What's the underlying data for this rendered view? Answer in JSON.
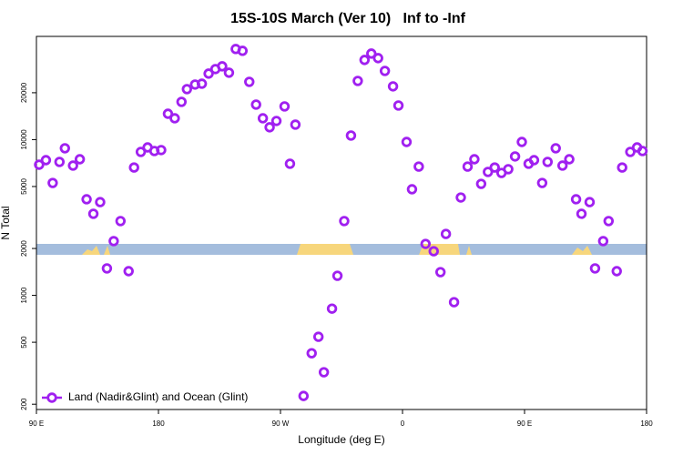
{
  "chart_data": {
    "type": "scatter",
    "title": "15S-10S March (Ver 10)   Inf to -Inf",
    "x_label": "Longitude (deg E)",
    "y_label": "N Total",
    "log_y": true,
    "legend": "bottom-left",
    "xlim": [
      90,
      540
    ],
    "xticks": [
      {
        "value": 90,
        "label": "90 E"
      },
      180,
      {
        "value": 270,
        "label": "90 W"
      },
      {
        "value": 360,
        "label": "0"
      },
      {
        "value": 450,
        "label": "90 E"
      },
      {
        "value": 540,
        "label": "180"
      }
    ],
    "ylim": [
      185,
      46000
    ],
    "yticks": [
      200,
      500,
      1000,
      2000,
      5000,
      10000,
      20000
    ],
    "series": [
      {
        "name": "Land (Nadir&Glint) and Ocean (Glint)",
        "color": "#a020f0",
        "x": [
          92,
          97,
          102,
          107,
          111,
          117,
          122,
          127,
          132,
          137,
          142,
          147,
          152,
          158,
          162,
          167,
          172,
          177,
          182,
          187,
          192,
          197,
          201,
          207,
          212,
          217,
          222,
          227,
          232,
          237,
          242,
          247,
          252,
          257,
          262,
          267,
          273,
          277,
          281,
          287,
          293,
          298,
          302,
          308,
          312,
          317,
          322,
          327,
          332,
          337,
          342,
          347,
          353,
          357,
          363,
          367,
          372,
          377,
          383,
          388,
          392,
          398,
          403,
          408,
          413,
          418,
          423,
          428,
          433,
          438,
          443,
          448,
          453,
          457,
          463,
          467,
          473,
          478,
          483,
          488,
          492,
          498,
          502,
          508,
          512,
          518,
          522,
          528,
          533,
          537
        ],
        "values": [
          6900,
          7380,
          5270,
          7190,
          8800,
          6810,
          7480,
          4140,
          3340,
          3970,
          1490,
          2230,
          3000,
          1430,
          6620,
          8340,
          8910,
          8450,
          8570,
          14660,
          13710,
          17480,
          21100,
          22580,
          22860,
          26540,
          28380,
          29560,
          26900,
          38180,
          37160,
          23500,
          16780,
          13710,
          12000,
          13180,
          16340,
          7000,
          12480,
          226,
          425,
          542,
          321,
          822,
          1336,
          3000,
          10620,
          23820,
          32480,
          35680,
          33360,
          27620,
          21980,
          16560,
          9660,
          4800,
          6710,
          2140,
          1920,
          1410,
          2480,
          904,
          4250,
          6710,
          7480,
          5200,
          6200,
          6620,
          6110,
          6460,
          7800,
          9660,
          7000,
          7380,
          5270,
          7190,
          8800,
          6810,
          7480,
          4140,
          3340,
          3970,
          1490,
          2230,
          3000,
          1430,
          6620,
          8340,
          8910,
          8450
        ]
      }
    ]
  }
}
